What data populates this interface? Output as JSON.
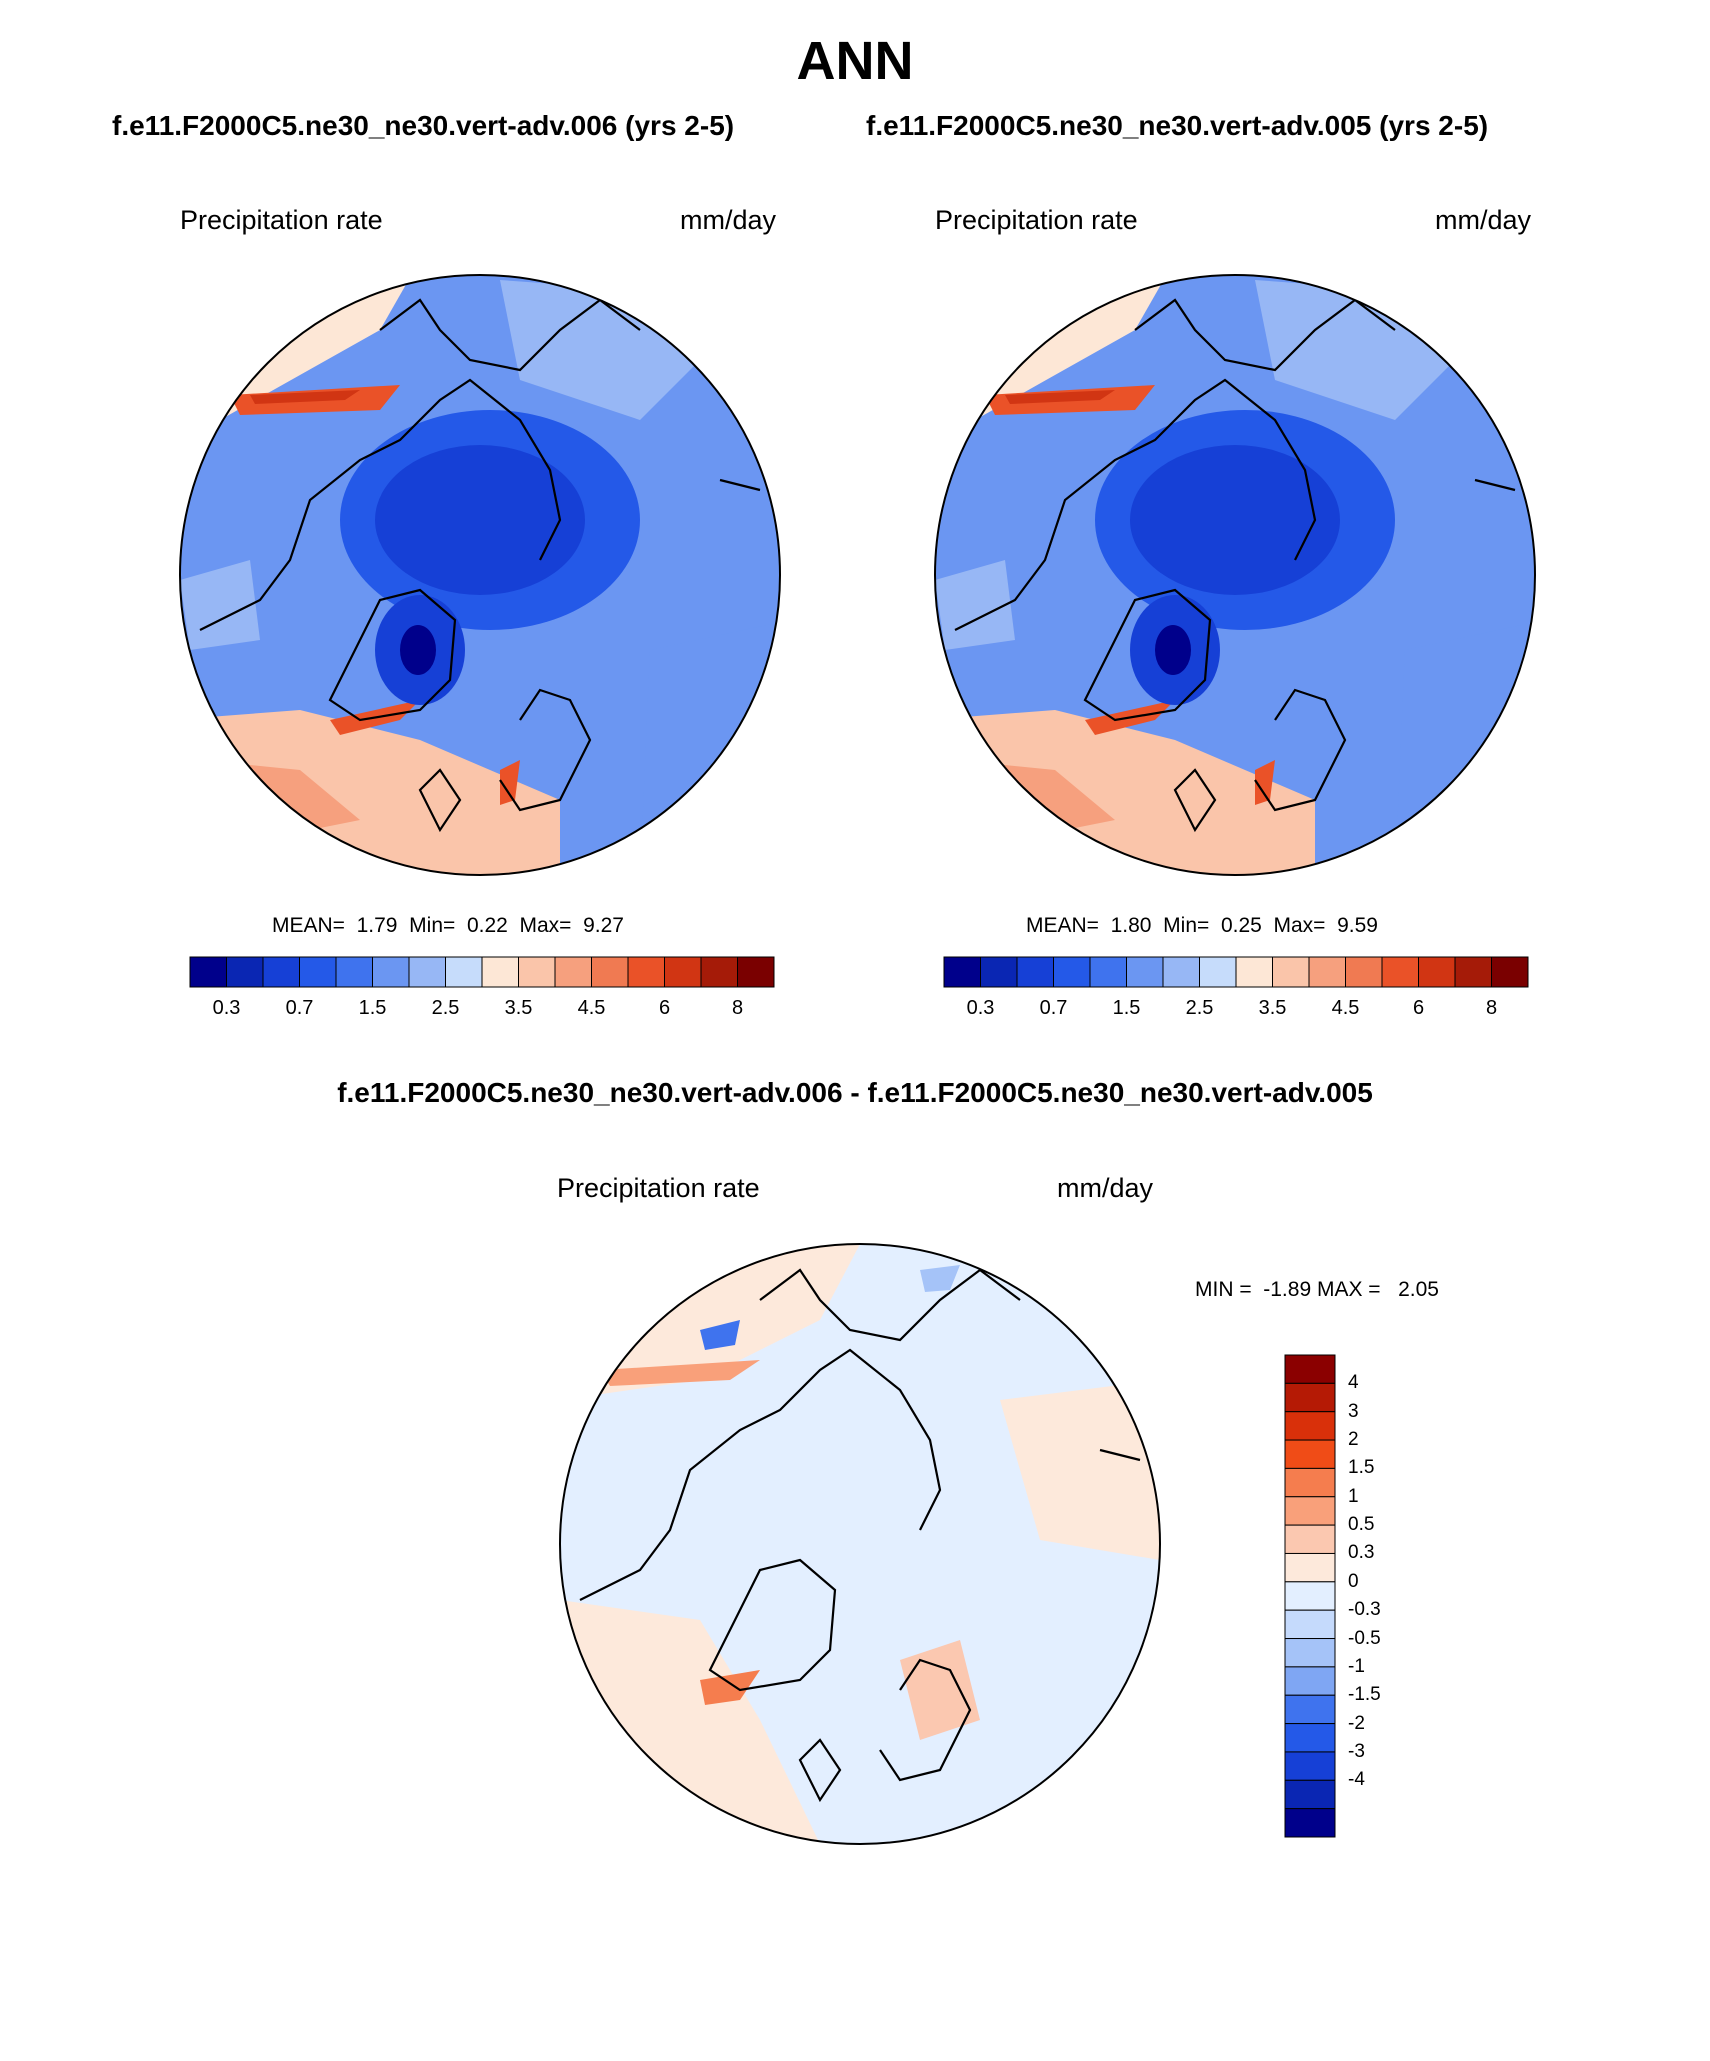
{
  "title": "ANN",
  "panels": [
    {
      "case_title": "f.e11.F2000C5.ne30_ne30.vert-adv.006 (yrs 2-5)",
      "variable": "Precipitation rate",
      "units": "mm/day",
      "stats": {
        "mean_label": "MEAN=",
        "mean": "1.79",
        "min_label": "Min=",
        "min": "0.22",
        "max_label": "Max=",
        "max": "9.27"
      }
    },
    {
      "case_title": "f.e11.F2000C5.ne30_ne30.vert-adv.005 (yrs 2-5)",
      "variable": "Precipitation rate",
      "units": "mm/day",
      "stats": {
        "mean_label": "MEAN=",
        "mean": "1.80",
        "min_label": "Min=",
        "min": "0.25",
        "max_label": "Max=",
        "max": "9.59"
      }
    }
  ],
  "abs_colorbar": {
    "colors": [
      "#00008b",
      "#0a26b3",
      "#1640d6",
      "#2459e8",
      "#3f73ee",
      "#6b96f2",
      "#97b7f5",
      "#c6dcfb",
      "#fde7d6",
      "#fac5aa",
      "#f6a07e",
      "#f07a52",
      "#ea5228",
      "#d13513",
      "#a51b08",
      "#7a0000"
    ],
    "labels": [
      "0.3",
      "0.7",
      "1.5",
      "2.5",
      "3.5",
      "4.5",
      "6",
      "8"
    ]
  },
  "diff": {
    "title": "f.e11.F2000C5.ne30_ne30.vert-adv.006 - f.e11.F2000C5.ne30_ne30.vert-adv.005",
    "variable": "Precipitation rate",
    "units": "mm/day",
    "stats": "MIN =  -1.89 MAX =   2.05"
  },
  "diff_colorbar": {
    "colors": [
      "#8b0000",
      "#b51a05",
      "#d9300a",
      "#f04c17",
      "#f57d4e",
      "#f9a07a",
      "#fbc8b0",
      "#fde9db",
      "#e3efff",
      "#c5dafc",
      "#a5c3f8",
      "#7fa6f3",
      "#3f73ee",
      "#2459e8",
      "#1640d6",
      "#0a26b3",
      "#00008b"
    ],
    "labels": [
      "4",
      "3",
      "2",
      "1.5",
      "1",
      "0.5",
      "0.3",
      "0",
      "-0.3",
      "-0.5",
      "-1",
      "-1.5",
      "-2",
      "-3",
      "-4"
    ]
  }
}
